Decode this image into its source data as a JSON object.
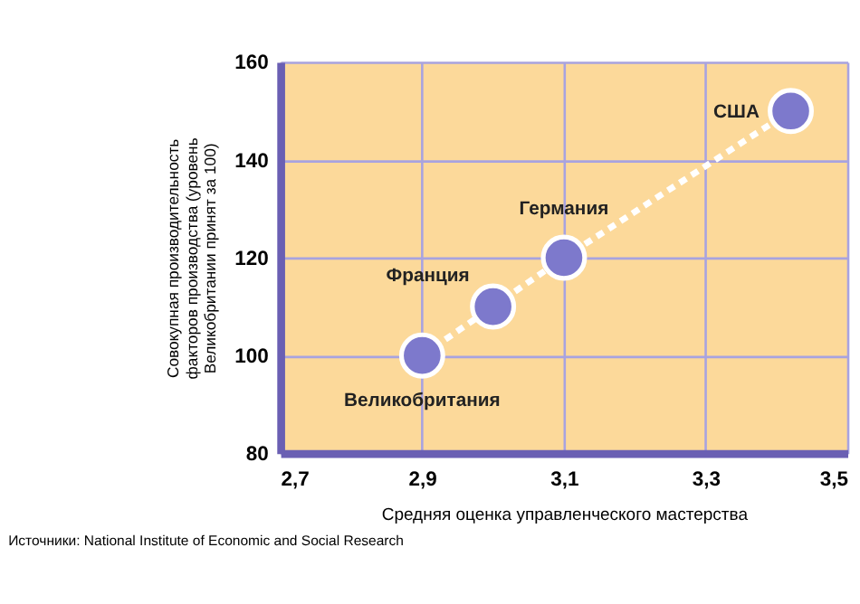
{
  "chart_data": {
    "type": "scatter",
    "xlabel": "Средняя оценка управленческого мастерства",
    "ylabel": "Совокупная производительность факторов производства (уровень Великобритании принят за 100)",
    "x": [
      2.9,
      3.0,
      3.1,
      3.42
    ],
    "series": [
      {
        "type": "line",
        "color": "#ffffff",
        "line_style": "dashed",
        "marker": "none",
        "values": [
          100,
          110,
          120,
          150
        ]
      },
      {
        "color": "#7d79cc",
        "marker": "circle",
        "values": [
          100,
          110,
          120,
          150
        ]
      }
    ],
    "xlim": [
      2.7,
      3.5
    ],
    "xticks": [
      {
        "value": 2.7,
        "label": "2,7"
      },
      {
        "value": 2.9,
        "label": "2,9"
      },
      {
        "value": 3.1,
        "label": "3,1"
      },
      {
        "value": 3.3,
        "label": "3,3"
      },
      {
        "value": 3.5,
        "label": "3,5"
      }
    ],
    "ylim": [
      80,
      160
    ],
    "yticks": [
      80,
      100,
      120,
      140,
      160
    ],
    "grid": true,
    "annotations": [
      {
        "text": "Великобритания",
        "x": 2.9,
        "y": 100
      },
      {
        "text": "Франция",
        "x": 3.0,
        "y": 110
      },
      {
        "text": "Германия",
        "x": 3.1,
        "y": 120
      },
      {
        "text": "США",
        "x": 3.42,
        "y": 150
      },
      "Источники: National Institute of Economic and Social Research"
    ]
  }
}
